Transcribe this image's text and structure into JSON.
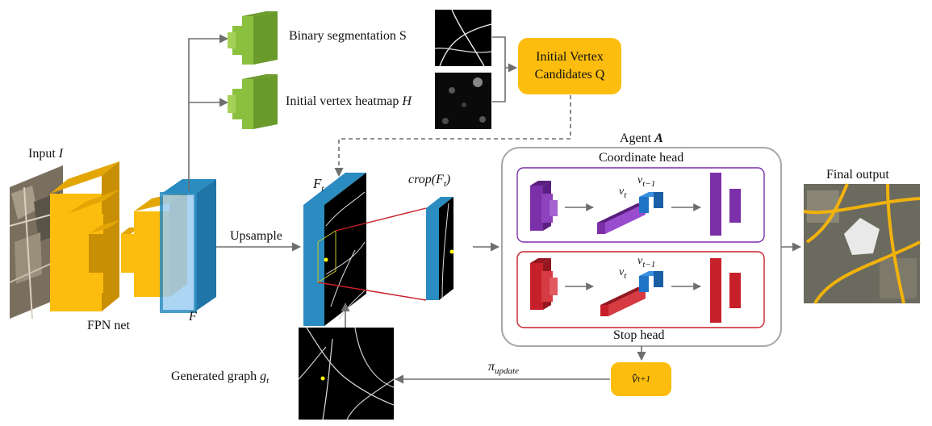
{
  "labels": {
    "input": "Input",
    "input_var": "I",
    "fpn": "FPN net",
    "feature": "F",
    "upsample": "Upsample",
    "seg": "Binary segmentation S",
    "heatmap": "Initial vertex heatmap",
    "heatmap_var": "H",
    "candidates_line1": "Initial Vertex",
    "candidates_line2": "Candidates Q",
    "ft": "F",
    "ft_sub": "t",
    "crop_pre": "crop(F",
    "crop_sub": "t",
    "crop_post": ")",
    "agent": "Agent",
    "agent_var": "A",
    "coord_head": "Coordinate head",
    "stop_head": "Stop head",
    "vt1": "v",
    "vt1_sub": "t−1",
    "vt": "v",
    "vt_sub": "t",
    "final": "Final output",
    "graph": "Generated graph",
    "graph_var": "g",
    "graph_sub": "t",
    "pi": "π",
    "pi_sub": "update",
    "vhat": "v̂",
    "vhat_sub": "t+1"
  },
  "colors": {
    "fpn_yellow": "#fcbd0e",
    "feature_blue": "#9ecdf2",
    "feature_edge": "#2a8cc0",
    "green": "#8bbf3e",
    "purple": "#7b2fa8",
    "red": "#c8202a",
    "blue_block": "#1f74c7",
    "arrow": "#6e6e6e"
  }
}
